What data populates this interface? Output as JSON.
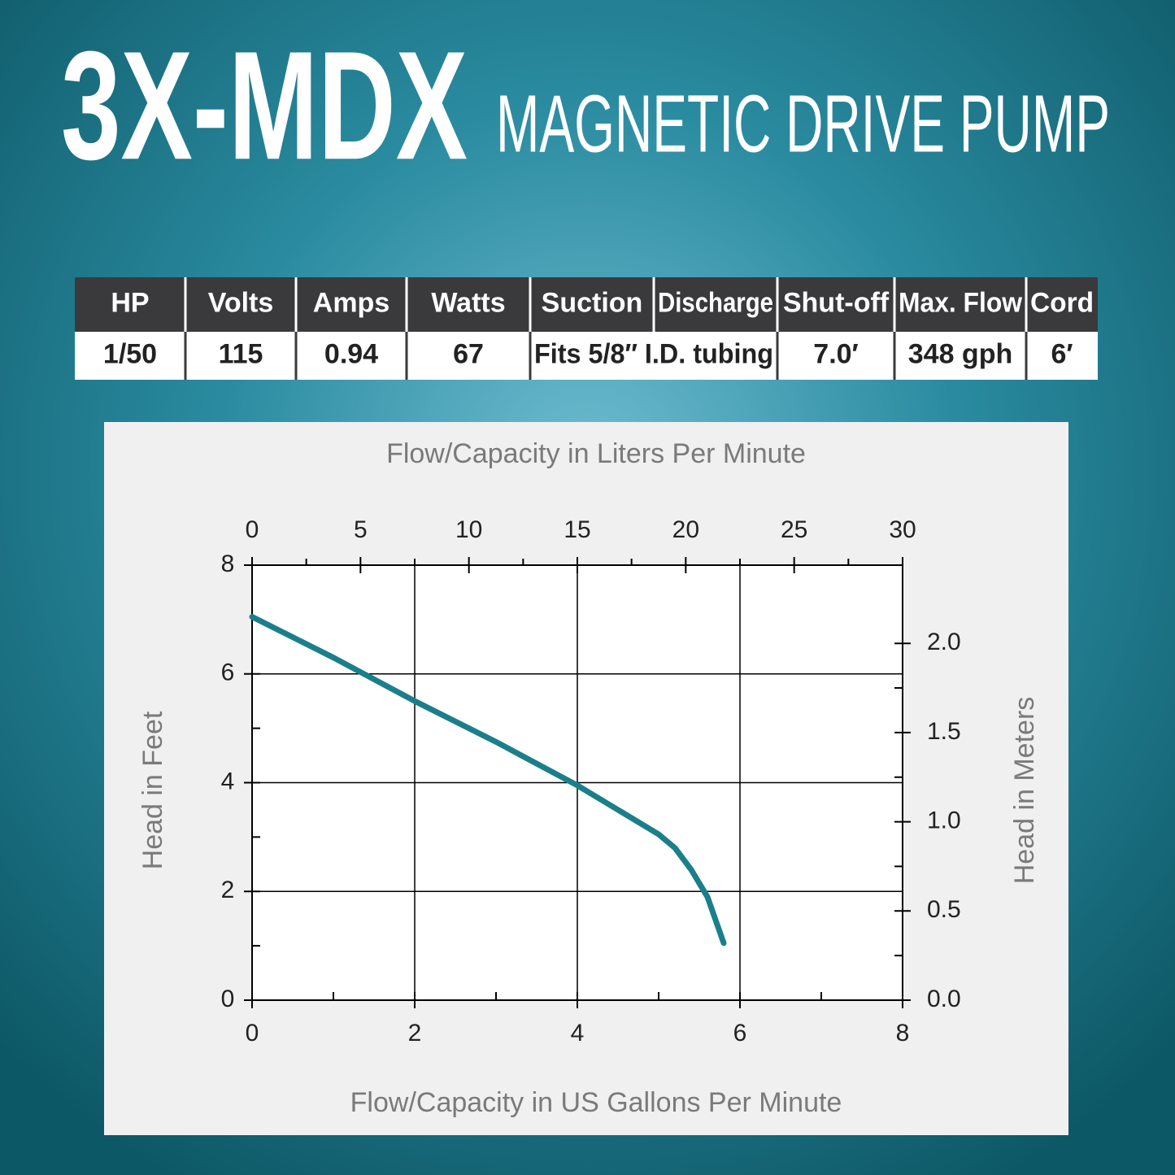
{
  "header": {
    "model": "3X-MDX",
    "subtitle": "MAGNETIC DRIVE PUMP"
  },
  "table": {
    "headers": [
      "HP",
      "Volts",
      "Amps",
      "Watts",
      "Suction",
      "Discharge",
      "Shut-off",
      "Max. Flow",
      "Cord"
    ],
    "rows": [
      [
        "1/50",
        "115",
        "0.94",
        "67",
        "Fits 5/8″ I.D. tubing",
        "7.0′",
        "348 gph",
        "6′"
      ]
    ]
  },
  "chart_data": {
    "type": "line",
    "x2label": "Flow/Capacity in Liters Per Minute",
    "xlabel": "Flow/Capacity in US Gallons Per Minute",
    "ylabel": "Head in Feet",
    "y2label": "Head in Meters",
    "xlim": [
      0,
      8
    ],
    "xticks": [
      0,
      2,
      4,
      6,
      8
    ],
    "x2lim": [
      0,
      30
    ],
    "x2ticks": [
      0,
      5,
      10,
      15,
      20,
      25,
      30
    ],
    "ylim": [
      0,
      8
    ],
    "yticks": [
      0,
      2,
      4,
      6,
      8
    ],
    "y2lim": [
      0,
      2.4384
    ],
    "y2ticks": [
      {
        "value": 0,
        "label": "0.0"
      },
      0.5,
      {
        "value": 1,
        "label": "1.0"
      },
      1.5,
      {
        "value": 2,
        "label": "2.0"
      }
    ],
    "grid": true,
    "x": [
      0,
      1,
      2,
      3,
      4,
      4.5,
      5,
      5.2,
      5.4,
      5.6,
      5.8
    ],
    "series": [
      {
        "name": "3X-MDX",
        "color": "#1b7f8b",
        "values": [
          7.05,
          6.3,
          5.5,
          4.75,
          3.95,
          3.5,
          3.05,
          2.8,
          2.4,
          1.9,
          1.05
        ]
      }
    ]
  }
}
